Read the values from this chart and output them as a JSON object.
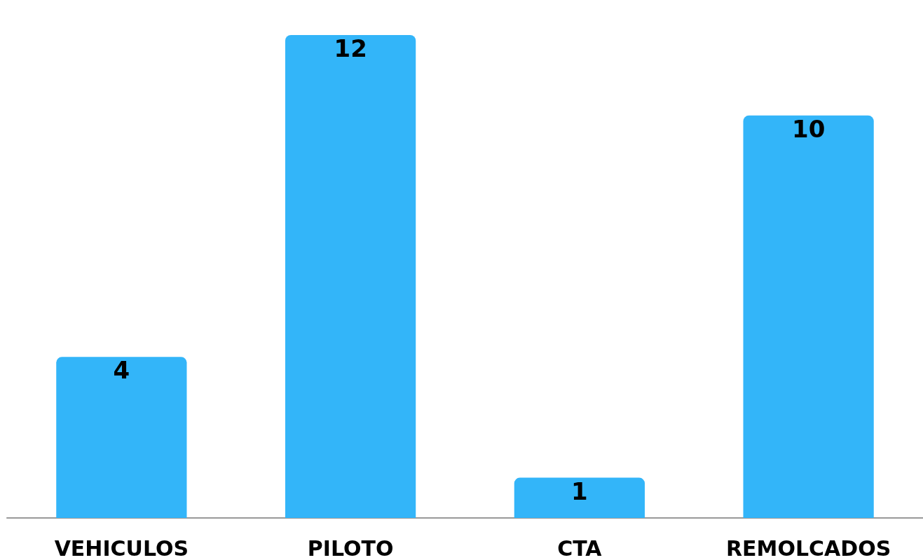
{
  "chart_data": {
    "type": "bar",
    "categories": [
      "VEHICULOS",
      "PILOTO",
      "CTA",
      "REMOLCADOS"
    ],
    "values": [
      4,
      12,
      1,
      10
    ],
    "color": "#33b5f9",
    "data_labels": true
  }
}
